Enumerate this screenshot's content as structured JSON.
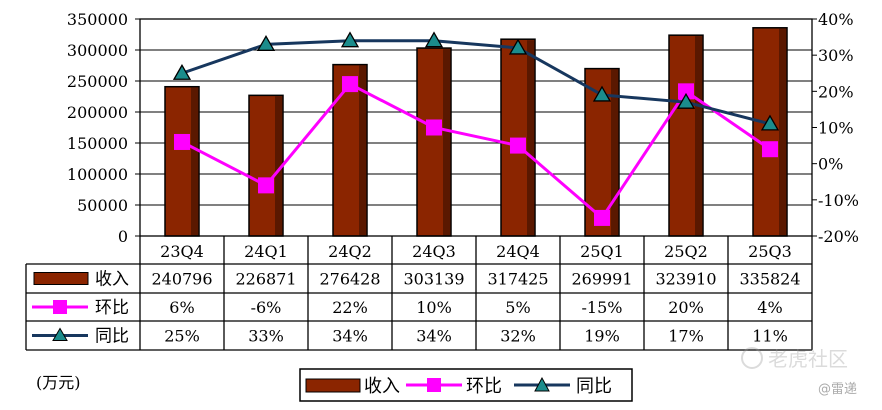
{
  "chart_data": {
    "type": "bar",
    "categories": [
      "23Q4",
      "24Q1",
      "24Q2",
      "24Q3",
      "24Q4",
      "25Q1",
      "25Q2",
      "25Q3"
    ],
    "series": [
      {
        "name": "收入",
        "type": "bar",
        "axis": "left",
        "values": [
          240796,
          226871,
          276428,
          303139,
          317425,
          269991,
          323910,
          335824
        ],
        "display": [
          "240796",
          "226871",
          "276428",
          "303139",
          "317425",
          "269991",
          "323910",
          "335824"
        ],
        "color": "#8B2500"
      },
      {
        "name": "环比",
        "type": "line",
        "axis": "right",
        "marker": "square",
        "values": [
          6,
          -6,
          22,
          10,
          5,
          -15,
          20,
          4
        ],
        "display": [
          "6%",
          "-6%",
          "22%",
          "10%",
          "5%",
          "-15%",
          "20%",
          "4%"
        ],
        "color": "#FF00FF"
      },
      {
        "name": "同比",
        "type": "line",
        "axis": "right",
        "marker": "triangle",
        "values": [
          25,
          33,
          34,
          34,
          32,
          19,
          17,
          11
        ],
        "display": [
          "25%",
          "33%",
          "34%",
          "34%",
          "32%",
          "19%",
          "17%",
          "11%"
        ],
        "color": "#17375E"
      }
    ],
    "y_left": {
      "min": 0,
      "max": 350000,
      "ticks": [
        "0",
        "50000",
        "100000",
        "150000",
        "200000",
        "250000",
        "300000",
        "350000"
      ]
    },
    "y_right": {
      "min": -20,
      "max": 40,
      "ticks": [
        "-20%",
        "-10%",
        "0%",
        "10%",
        "20%",
        "30%",
        "40%"
      ]
    },
    "grid": true,
    "legend": "bottom-center",
    "data_table": true,
    "unit_note": "(万元)"
  },
  "watermarks": {
    "main": "老虎社区",
    "sub": "@雷递"
  }
}
